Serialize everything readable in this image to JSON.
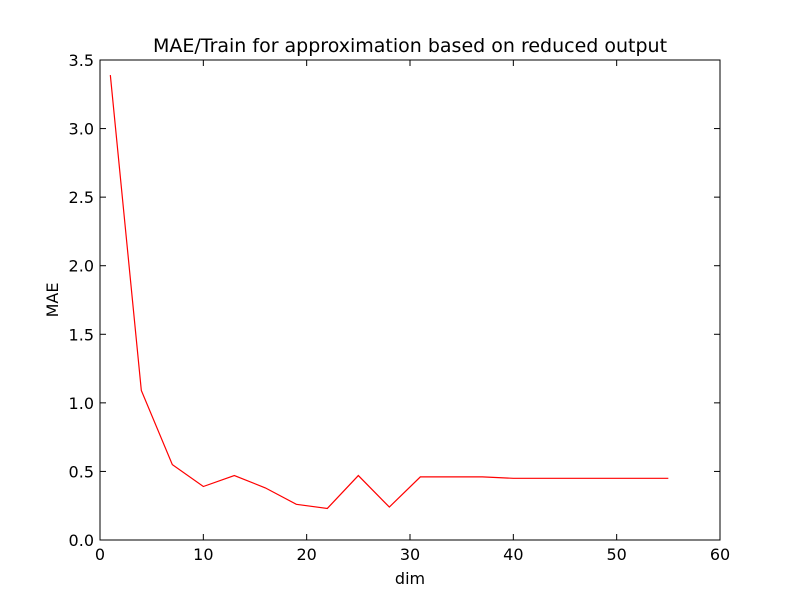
{
  "chart_data": {
    "type": "line",
    "title": "MAE/Train for approximation based on reduced output",
    "xlabel": "dim",
    "ylabel": "MAE",
    "xlim": [
      0,
      60
    ],
    "ylim": [
      0.0,
      3.5
    ],
    "xticks": [
      0,
      10,
      20,
      30,
      40,
      50,
      60
    ],
    "xtick_labels": [
      "0",
      "10",
      "20",
      "30",
      "40",
      "50",
      "60"
    ],
    "yticks": [
      0.0,
      0.5,
      1.0,
      1.5,
      2.0,
      2.5,
      3.0,
      3.5
    ],
    "ytick_labels": [
      "0.0",
      "0.5",
      "1.0",
      "1.5",
      "2.0",
      "2.5",
      "3.0",
      "3.5"
    ],
    "grid": false,
    "series": [
      {
        "color": "#ff0000",
        "x": [
          1,
          4,
          7,
          10,
          13,
          16,
          19,
          22,
          25,
          28,
          31,
          34,
          37,
          40,
          43,
          46,
          49,
          52,
          55
        ],
        "y": [
          3.39,
          1.09,
          0.55,
          0.39,
          0.47,
          0.38,
          0.26,
          0.23,
          0.47,
          0.24,
          0.46,
          0.46,
          0.46,
          0.45,
          0.45,
          0.45,
          0.45,
          0.45,
          0.45
        ]
      }
    ]
  }
}
